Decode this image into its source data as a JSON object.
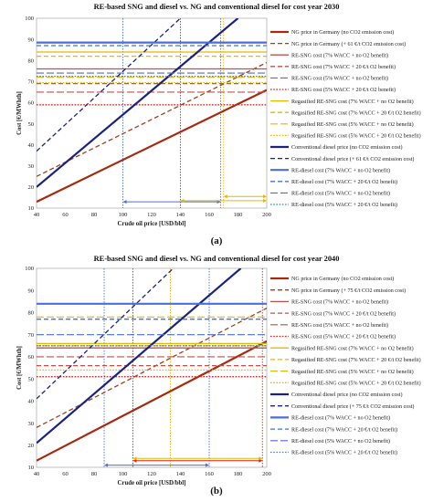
{
  "charts": [
    {
      "caption": "(a)",
      "chart_data": {
        "type": "line",
        "title": "RE-based SNG and diesel vs. NG and conventional diesel for cost year 2030",
        "xlabel": "Crude oil price [USD/bbl]",
        "ylabel": "Cost [€/MWhth]",
        "xlim": [
          40,
          200
        ],
        "ylim": [
          10,
          100
        ],
        "xticks": [
          40,
          60,
          80,
          100,
          120,
          140,
          160,
          180,
          200
        ],
        "yticks": [
          10,
          20,
          30,
          40,
          50,
          60,
          70,
          80,
          90,
          100
        ],
        "grid": false,
        "legend_position": "right",
        "series": [
          {
            "name": "NG price in Germany (no CO2 emission cost)",
            "color": "#a52a0f",
            "dash": "solid",
            "width": 2.2,
            "x": [
              40,
              200
            ],
            "y": [
              13,
              66
            ]
          },
          {
            "name": "NG price in Germany (+ 61 €/t CO2 emission cost)",
            "color": "#a0401a",
            "dash": "dashed",
            "width": 1.3,
            "x": [
              40,
              200
            ],
            "y": [
              25,
              79
            ]
          },
          {
            "name": "RE-SNG cost (7% WACC + no O2 benefit)",
            "color": "#c0504d",
            "dash": "solid",
            "width": 1.3,
            "x": [
              40,
              200
            ],
            "y": [
              76,
              76
            ]
          },
          {
            "name": "RE-SNG cost (7% WACC + 20 €/t O2 benefit)",
            "color": "#c0504d",
            "dash": "dashed",
            "width": 1.3,
            "x": [
              40,
              200
            ],
            "y": [
              69,
              69
            ]
          },
          {
            "name": "RE-SNG cost (5% WACC + no O2 benefit)",
            "color": "#c0504d",
            "dash": "long",
            "width": 1.1,
            "x": [
              40,
              200
            ],
            "y": [
              65,
              65
            ]
          },
          {
            "name": "RE-SNG cost (5% WACC + 20 €/t O2 benefit)",
            "color": "#e0201a",
            "dash": "dotted",
            "width": 1.3,
            "x": [
              40,
              200
            ],
            "y": [
              59,
              59
            ]
          },
          {
            "name": "Regasified RE-SNG cost (7% WACC + no O2 benefit)",
            "color": "#e6b800",
            "dash": "solid",
            "width": 1.3,
            "x": [
              40,
              200
            ],
            "y": [
              84,
              84
            ]
          },
          {
            "name": "Regasified RE-SNG cost (7% WACC + 20 €/t O2 benefit)",
            "color": "#e6b800",
            "dash": "dashed",
            "width": 1.3,
            "x": [
              40,
              200
            ],
            "y": [
              82,
              82
            ]
          },
          {
            "name": "Regasified RE-SNG cost (5% WACC + no O2 benefit)",
            "color": "#e6b800",
            "dash": "long",
            "width": 1.1,
            "x": [
              40,
              200
            ],
            "y": [
              72,
              72
            ]
          },
          {
            "name": "Regasified RE-SNG cost (5% WACC + 20 €/t O2 benefit)",
            "color": "#e6b800",
            "dash": "dotted",
            "width": 1.3,
            "x": [
              40,
              200
            ],
            "y": [
              69.5,
              69.5
            ]
          },
          {
            "name": "Conventional diesel price (no CO2 emission cost)",
            "color": "#1a237e",
            "dash": "solid",
            "width": 2.2,
            "x": [
              40,
              180
            ],
            "y": [
              20,
              100
            ]
          },
          {
            "name": "Conventional diesel price (+ 61 €/t CO2 emission cost)",
            "color": "#1a237e",
            "dash": "dashed",
            "width": 1.3,
            "x": [
              40,
              140
            ],
            "y": [
              37,
              100
            ]
          },
          {
            "name": "RE-diesel cost (7% WACC + no O2 benefit)",
            "color": "#4a6fd8",
            "dash": "solid",
            "width": 2.2,
            "x": [
              40,
              200
            ],
            "y": [
              88.5,
              88.5
            ]
          },
          {
            "name": "RE-diesel cost (7% WACC + 20 €/t O2 benefit)",
            "color": "#4a6fd8",
            "dash": "dashed",
            "width": 1.3,
            "x": [
              40,
              200
            ],
            "y": [
              87,
              87
            ]
          },
          {
            "name": "RE-diesel cost (5% WACC + no O2 benefit)",
            "color": "#4a6fd8",
            "dash": "long",
            "width": 1.1,
            "x": [
              40,
              200
            ],
            "y": [
              74,
              74
            ]
          },
          {
            "name": "RE-diesel cost (5% WACC + 20 €/t O2 benefit)",
            "color": "#2a8ad8",
            "dash": "dotted",
            "width": 1.3,
            "x": [
              40,
              200
            ],
            "y": [
              72.5,
              72.5
            ]
          }
        ],
        "markers": [
          {
            "x": 100,
            "color": "#4a6fd8",
            "style": "dotted"
          },
          {
            "x": 140,
            "color": "#e0201a",
            "style": "dotted"
          },
          {
            "x": 168,
            "color": "#4a6fd8",
            "style": "dotted"
          },
          {
            "x": 170,
            "color": "#e6b800",
            "style": "dotted"
          }
        ],
        "ranges": [
          {
            "x1": 100,
            "x2": 168,
            "y": 13,
            "color": "#4a6fd8"
          },
          {
            "x1": 140,
            "x2": 200,
            "y": 13.5,
            "color": "#e6b800"
          },
          {
            "x1": 170,
            "x2": 200,
            "y": 15.5,
            "color": "#e6b800"
          }
        ]
      }
    },
    {
      "caption": "(b)",
      "chart_data": {
        "type": "line",
        "title": "RE-based SNG and diesel vs. NG and conventional diesel for cost year 2040",
        "xlabel": "Crude oil price [USD/bbl]",
        "ylabel": "Cost [€/MWhth]",
        "xlim": [
          40,
          200
        ],
        "ylim": [
          10,
          100
        ],
        "xticks": [
          40,
          60,
          80,
          100,
          120,
          140,
          160,
          180,
          200
        ],
        "yticks": [
          10,
          20,
          30,
          40,
          50,
          60,
          70,
          80,
          90,
          100
        ],
        "grid": false,
        "legend_position": "right",
        "series": [
          {
            "name": "NG price in Germany (no CO2 emission cost)",
            "color": "#a52a0f",
            "dash": "solid",
            "width": 2.2,
            "x": [
              40,
              200
            ],
            "y": [
              13,
              67
            ]
          },
          {
            "name": "NG price in Germany (+ 75 €/t CO2 emission cost)",
            "color": "#a0401a",
            "dash": "dashed",
            "width": 1.3,
            "x": [
              40,
              200
            ],
            "y": [
              28,
              82
            ]
          },
          {
            "name": "RE-SNG cost (7% WACC + no O2 benefit)",
            "color": "#c0504d",
            "dash": "solid",
            "width": 1.3,
            "x": [
              40,
              200
            ],
            "y": [
              64,
              64
            ]
          },
          {
            "name": "RE-SNG cost (7% WACC + 20 €/t O2 benefit)",
            "color": "#c0504d",
            "dash": "dashed",
            "width": 1.3,
            "x": [
              40,
              200
            ],
            "y": [
              56,
              56
            ]
          },
          {
            "name": "RE-SNG cost (5% WACC + no O2 benefit)",
            "color": "#c0504d",
            "dash": "long",
            "width": 1.1,
            "x": [
              40,
              200
            ],
            "y": [
              60,
              60
            ]
          },
          {
            "name": "RE-SNG cost (5% WACC + 20 €/t O2 benefit)",
            "color": "#e0201a",
            "dash": "dotted",
            "width": 1.3,
            "x": [
              40,
              200
            ],
            "y": [
              51,
              51
            ]
          },
          {
            "name": "Regasified RE-SNG cost (7% WACC + no O2 benefit)",
            "color": "#e6b800",
            "dash": "solid",
            "width": 1.3,
            "x": [
              40,
              200
            ],
            "y": [
              66,
              66
            ]
          },
          {
            "name": "Regasified RE-SNG cost (7% WACC + 20 €/t O2 benefit)",
            "color": "#e6b800",
            "dash": "dashed",
            "width": 1.3,
            "x": [
              40,
              200
            ],
            "y": [
              65,
              65
            ]
          },
          {
            "name": "Regasified RE-SNG cost (5% WACC + no O2 benefit)",
            "color": "#e6b800",
            "dash": "long",
            "width": 1.1,
            "x": [
              40,
              200
            ],
            "y": [
              78,
              78
            ]
          },
          {
            "name": "Regasified RE-SNG cost (5% WACC + 20 €/t O2 benefit)",
            "color": "#e6b800",
            "dash": "dotted",
            "width": 1.3,
            "x": [
              40,
              200
            ],
            "y": [
              54,
              54
            ]
          },
          {
            "name": "Conventional diesel price (no CO2 emission cost)",
            "color": "#1a237e",
            "dash": "solid",
            "width": 2.2,
            "x": [
              40,
              182
            ],
            "y": [
              21,
              100
            ]
          },
          {
            "name": "Conventional diesel price (+ 75 €/t CO2 emission cost)",
            "color": "#1a237e",
            "dash": "dashed",
            "width": 1.3,
            "x": [
              40,
              135
            ],
            "y": [
              41,
              100
            ]
          },
          {
            "name": "RE-diesel cost (7% WACC + no O2 benefit)",
            "color": "#4a6fd8",
            "dash": "solid",
            "width": 2.2,
            "x": [
              40,
              200
            ],
            "y": [
              84,
              84
            ]
          },
          {
            "name": "RE-diesel cost (7% WACC + 20 €/t O2 benefit)",
            "color": "#4a6fd8",
            "dash": "dashed",
            "width": 1.3,
            "x": [
              40,
              200
            ],
            "y": [
              77,
              77
            ]
          },
          {
            "name": "RE-diesel cost (5% WACC + no O2 benefit)",
            "color": "#4a6fd8",
            "dash": "long",
            "width": 1.1,
            "x": [
              40,
              200
            ],
            "y": [
              70,
              70
            ]
          },
          {
            "name": "RE-diesel cost (5% WACC + 20 €/t O2 benefit)",
            "color": "#2a8ad8",
            "dash": "dotted",
            "width": 1.3,
            "x": [
              40,
              200
            ],
            "y": [
              65,
              65
            ]
          }
        ],
        "markers": [
          {
            "x": 87,
            "color": "#4a6fd8",
            "style": "dotted"
          },
          {
            "x": 107,
            "color": "#e0201a",
            "style": "dotted"
          },
          {
            "x": 133,
            "color": "#e6b800",
            "style": "dotted"
          },
          {
            "x": 160,
            "color": "#4a6fd8",
            "style": "dotted"
          },
          {
            "x": 197,
            "color": "#e0201a",
            "style": "dotted"
          }
        ],
        "ranges": [
          {
            "x1": 87,
            "x2": 160,
            "y": 11,
            "color": "#4a6fd8"
          },
          {
            "x1": 107,
            "x2": 197,
            "y": 13,
            "color": "#e0201a"
          },
          {
            "x1": 107,
            "x2": 197,
            "y": 14,
            "color": "#e6b800"
          }
        ]
      }
    }
  ]
}
